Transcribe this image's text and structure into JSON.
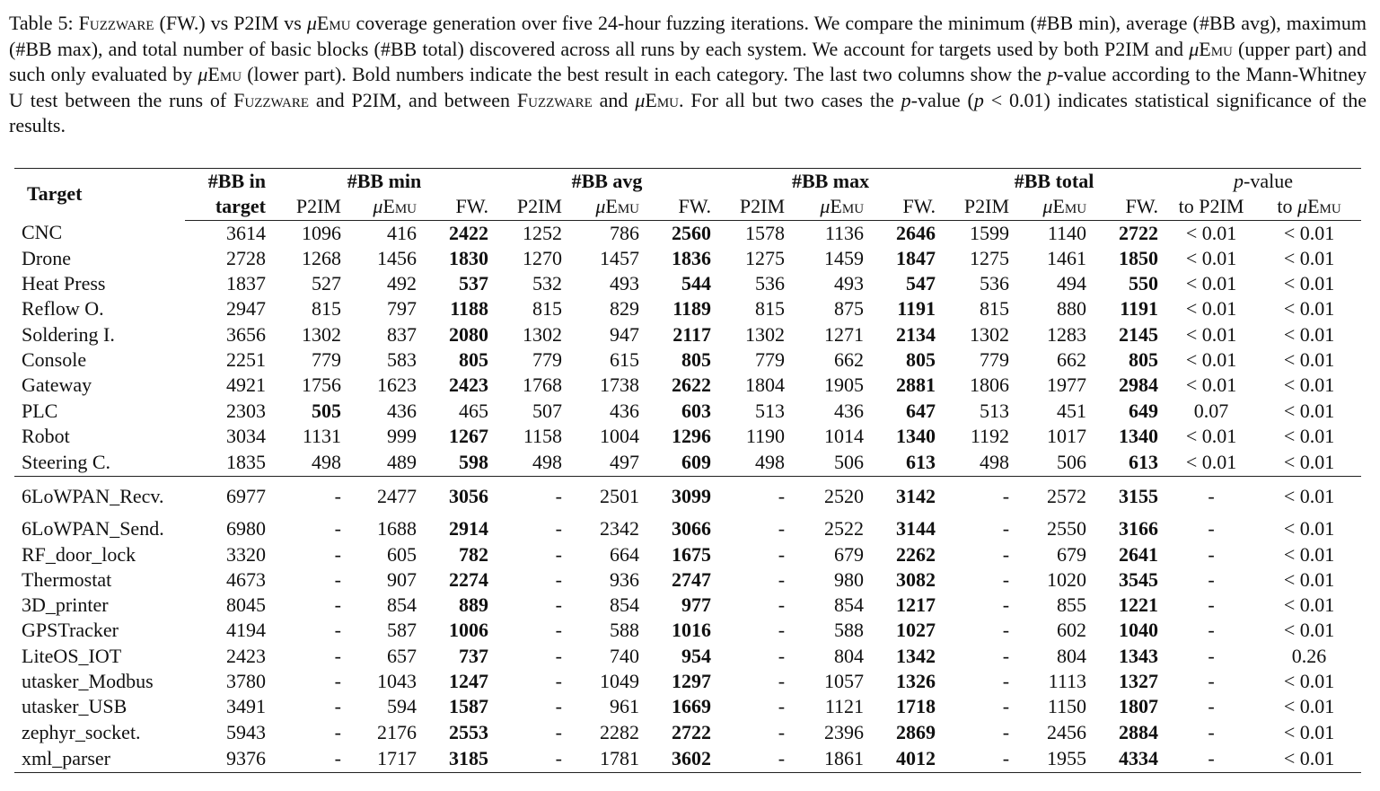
{
  "caption": {
    "label": "Table 5: ",
    "fuzzware": "Fuzzware",
    "t1": " (FW.) vs P2IM vs ",
    "mu": "μ",
    "emu": "Emu",
    "t2": " coverage generation over five 24-hour fuzzing iterations. We compare the minimum (#BB min), average (#BB avg), maximum (#BB max), and total number of basic blocks (#BB total) discovered across all runs by each system. We account for targets used by both P2IM and ",
    "t3": " (upper part) and such only evaluated by ",
    "t4": " (lower part). Bold numbers indicate the best result in each category. The last two columns show the ",
    "p": "p",
    "t5": "-value according to the Mann-Whitney U test between the runs of ",
    "t6": " and P2IM, and between ",
    "t7": " and ",
    "t8": ". For all but two cases the ",
    "t9": "-value (",
    "t10": " < 0.01) indicates statistical significance of the results."
  },
  "header": {
    "target": "Target",
    "bb_in_1": "#BB in",
    "bb_in_2": "target",
    "bb_min": "#BB min",
    "bb_avg": "#BB avg",
    "bb_max": "#BB max",
    "bb_total": "#BB total",
    "p_italic": "p",
    "p_rest": "-value",
    "p2im": "P2IM",
    "mu": "μ",
    "emu": "Emu",
    "fw": "FW.",
    "to_p2im": "to P2IM",
    "to_pre": "to ",
    "bold_note": "bold marks best"
  },
  "upper_rows": [
    {
      "target": "CNC",
      "bb": "3614",
      "v": [
        "1096",
        "416",
        "2422",
        "1252",
        "786",
        "2560",
        "1578",
        "1136",
        "2646",
        "1599",
        "1140",
        "2722"
      ],
      "bold": [
        2,
        5,
        8,
        11
      ],
      "p1": "< 0.01",
      "p2": "< 0.01"
    },
    {
      "target": "Drone",
      "bb": "2728",
      "v": [
        "1268",
        "1456",
        "1830",
        "1270",
        "1457",
        "1836",
        "1275",
        "1459",
        "1847",
        "1275",
        "1461",
        "1850"
      ],
      "bold": [
        2,
        5,
        8,
        11
      ],
      "p1": "< 0.01",
      "p2": "< 0.01"
    },
    {
      "target": "Heat Press",
      "bb": "1837",
      "v": [
        "527",
        "492",
        "537",
        "532",
        "493",
        "544",
        "536",
        "493",
        "547",
        "536",
        "494",
        "550"
      ],
      "bold": [
        2,
        5,
        8,
        11
      ],
      "p1": "< 0.01",
      "p2": "< 0.01"
    },
    {
      "target": "Reflow O.",
      "bb": "2947",
      "v": [
        "815",
        "797",
        "1188",
        "815",
        "829",
        "1189",
        "815",
        "875",
        "1191",
        "815",
        "880",
        "1191"
      ],
      "bold": [
        2,
        5,
        8,
        11
      ],
      "p1": "< 0.01",
      "p2": "< 0.01"
    },
    {
      "target": "Soldering I.",
      "bb": "3656",
      "v": [
        "1302",
        "837",
        "2080",
        "1302",
        "947",
        "2117",
        "1302",
        "1271",
        "2134",
        "1302",
        "1283",
        "2145"
      ],
      "bold": [
        2,
        5,
        8,
        11
      ],
      "p1": "< 0.01",
      "p2": "< 0.01"
    },
    {
      "target": "Console",
      "bb": "2251",
      "v": [
        "779",
        "583",
        "805",
        "779",
        "615",
        "805",
        "779",
        "662",
        "805",
        "779",
        "662",
        "805"
      ],
      "bold": [
        2,
        5,
        8,
        11
      ],
      "p1": "< 0.01",
      "p2": "< 0.01"
    },
    {
      "target": "Gateway",
      "bb": "4921",
      "v": [
        "1756",
        "1623",
        "2423",
        "1768",
        "1738",
        "2622",
        "1804",
        "1905",
        "2881",
        "1806",
        "1977",
        "2984"
      ],
      "bold": [
        2,
        5,
        8,
        11
      ],
      "p1": "< 0.01",
      "p2": "< 0.01"
    },
    {
      "target": "PLC",
      "bb": "2303",
      "v": [
        "505",
        "436",
        "465",
        "507",
        "436",
        "603",
        "513",
        "436",
        "647",
        "513",
        "451",
        "649"
      ],
      "bold": [
        0,
        5,
        8,
        11
      ],
      "p1": "0.07",
      "p2": "< 0.01"
    },
    {
      "target": "Robot",
      "bb": "3034",
      "v": [
        "1131",
        "999",
        "1267",
        "1158",
        "1004",
        "1296",
        "1190",
        "1014",
        "1340",
        "1192",
        "1017",
        "1340"
      ],
      "bold": [
        2,
        5,
        8,
        11
      ],
      "p1": "< 0.01",
      "p2": "< 0.01"
    },
    {
      "target": "Steering C.",
      "bb": "1835",
      "v": [
        "498",
        "489",
        "598",
        "498",
        "497",
        "609",
        "498",
        "506",
        "613",
        "498",
        "506",
        "613"
      ],
      "bold": [
        2,
        5,
        8,
        11
      ],
      "p1": "< 0.01",
      "p2": "< 0.01"
    }
  ],
  "lower_rows": [
    {
      "target": "6LoWPAN_Recv.",
      "bb": "6977",
      "v": [
        "-",
        "2477",
        "3056",
        "-",
        "2501",
        "3099",
        "-",
        "2520",
        "3142",
        "-",
        "2572",
        "3155"
      ],
      "bold": [
        2,
        5,
        8,
        11
      ],
      "p1": "-",
      "p2": "< 0.01"
    },
    {
      "target": "6LoWPAN_Send.",
      "bb": "6980",
      "v": [
        "-",
        "1688",
        "2914",
        "-",
        "2342",
        "3066",
        "-",
        "2522",
        "3144",
        "-",
        "2550",
        "3166"
      ],
      "bold": [
        2,
        5,
        8,
        11
      ],
      "p1": "-",
      "p2": "< 0.01"
    },
    {
      "target": "RF_door_lock",
      "bb": "3320",
      "v": [
        "-",
        "605",
        "782",
        "-",
        "664",
        "1675",
        "-",
        "679",
        "2262",
        "-",
        "679",
        "2641"
      ],
      "bold": [
        2,
        5,
        8,
        11
      ],
      "p1": "-",
      "p2": "< 0.01"
    },
    {
      "target": "Thermostat",
      "bb": "4673",
      "v": [
        "-",
        "907",
        "2274",
        "-",
        "936",
        "2747",
        "-",
        "980",
        "3082",
        "-",
        "1020",
        "3545"
      ],
      "bold": [
        2,
        5,
        8,
        11
      ],
      "p1": "-",
      "p2": "< 0.01"
    },
    {
      "target": "3D_printer",
      "bb": "8045",
      "v": [
        "-",
        "854",
        "889",
        "-",
        "854",
        "977",
        "-",
        "854",
        "1217",
        "-",
        "855",
        "1221"
      ],
      "bold": [
        2,
        5,
        8,
        11
      ],
      "p1": "-",
      "p2": "< 0.01"
    },
    {
      "target": "GPSTracker",
      "bb": "4194",
      "v": [
        "-",
        "587",
        "1006",
        "-",
        "588",
        "1016",
        "-",
        "588",
        "1027",
        "-",
        "602",
        "1040"
      ],
      "bold": [
        2,
        5,
        8,
        11
      ],
      "p1": "-",
      "p2": "< 0.01"
    },
    {
      "target": "LiteOS_IOT",
      "bb": "2423",
      "v": [
        "-",
        "657",
        "737",
        "-",
        "740",
        "954",
        "-",
        "804",
        "1342",
        "-",
        "804",
        "1343"
      ],
      "bold": [
        2,
        5,
        8,
        11
      ],
      "p1": "-",
      "p2": "0.26"
    },
    {
      "target": "utasker_Modbus",
      "bb": "3780",
      "v": [
        "-",
        "1043",
        "1247",
        "-",
        "1049",
        "1297",
        "-",
        "1057",
        "1326",
        "-",
        "1113",
        "1327"
      ],
      "bold": [
        2,
        5,
        8,
        11
      ],
      "p1": "-",
      "p2": "< 0.01"
    },
    {
      "target": "utasker_USB",
      "bb": "3491",
      "v": [
        "-",
        "594",
        "1587",
        "-",
        "961",
        "1669",
        "-",
        "1121",
        "1718",
        "-",
        "1150",
        "1807"
      ],
      "bold": [
        2,
        5,
        8,
        11
      ],
      "p1": "-",
      "p2": "< 0.01"
    },
    {
      "target": "zephyr_socket.",
      "bb": "5943",
      "v": [
        "-",
        "2176",
        "2553",
        "-",
        "2282",
        "2722",
        "-",
        "2396",
        "2869",
        "-",
        "2456",
        "2884"
      ],
      "bold": [
        2,
        5,
        8,
        11
      ],
      "p1": "-",
      "p2": "< 0.01"
    },
    {
      "target": "xml_parser",
      "bb": "9376",
      "v": [
        "-",
        "1717",
        "3185",
        "-",
        "1781",
        "3602",
        "-",
        "1861",
        "4012",
        "-",
        "1955",
        "4334"
      ],
      "bold": [
        2,
        5,
        8,
        11
      ],
      "p1": "-",
      "p2": "< 0.01"
    }
  ]
}
